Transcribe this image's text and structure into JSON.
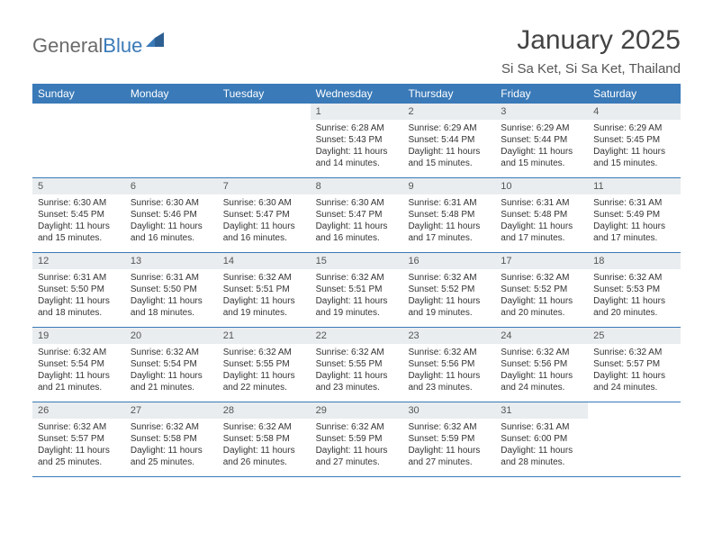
{
  "logo": {
    "word1": "General",
    "word2": "Blue"
  },
  "title": "January 2025",
  "location": "Si Sa Ket, Si Sa Ket, Thailand",
  "colors": {
    "header_bg": "#3a7ab8",
    "daynum_bg": "#e9edef",
    "rule": "#3a7ab8",
    "text": "#333333",
    "logo_gray": "#6b6b6b",
    "logo_blue": "#3a7ab8"
  },
  "dayNames": [
    "Sunday",
    "Monday",
    "Tuesday",
    "Wednesday",
    "Thursday",
    "Friday",
    "Saturday"
  ],
  "weeks": [
    [
      {
        "n": "",
        "lines": []
      },
      {
        "n": "",
        "lines": []
      },
      {
        "n": "",
        "lines": []
      },
      {
        "n": "1",
        "lines": [
          "Sunrise: 6:28 AM",
          "Sunset: 5:43 PM",
          "Daylight: 11 hours",
          "and 14 minutes."
        ]
      },
      {
        "n": "2",
        "lines": [
          "Sunrise: 6:29 AM",
          "Sunset: 5:44 PM",
          "Daylight: 11 hours",
          "and 15 minutes."
        ]
      },
      {
        "n": "3",
        "lines": [
          "Sunrise: 6:29 AM",
          "Sunset: 5:44 PM",
          "Daylight: 11 hours",
          "and 15 minutes."
        ]
      },
      {
        "n": "4",
        "lines": [
          "Sunrise: 6:29 AM",
          "Sunset: 5:45 PM",
          "Daylight: 11 hours",
          "and 15 minutes."
        ]
      }
    ],
    [
      {
        "n": "5",
        "lines": [
          "Sunrise: 6:30 AM",
          "Sunset: 5:45 PM",
          "Daylight: 11 hours",
          "and 15 minutes."
        ]
      },
      {
        "n": "6",
        "lines": [
          "Sunrise: 6:30 AM",
          "Sunset: 5:46 PM",
          "Daylight: 11 hours",
          "and 16 minutes."
        ]
      },
      {
        "n": "7",
        "lines": [
          "Sunrise: 6:30 AM",
          "Sunset: 5:47 PM",
          "Daylight: 11 hours",
          "and 16 minutes."
        ]
      },
      {
        "n": "8",
        "lines": [
          "Sunrise: 6:30 AM",
          "Sunset: 5:47 PM",
          "Daylight: 11 hours",
          "and 16 minutes."
        ]
      },
      {
        "n": "9",
        "lines": [
          "Sunrise: 6:31 AM",
          "Sunset: 5:48 PM",
          "Daylight: 11 hours",
          "and 17 minutes."
        ]
      },
      {
        "n": "10",
        "lines": [
          "Sunrise: 6:31 AM",
          "Sunset: 5:48 PM",
          "Daylight: 11 hours",
          "and 17 minutes."
        ]
      },
      {
        "n": "11",
        "lines": [
          "Sunrise: 6:31 AM",
          "Sunset: 5:49 PM",
          "Daylight: 11 hours",
          "and 17 minutes."
        ]
      }
    ],
    [
      {
        "n": "12",
        "lines": [
          "Sunrise: 6:31 AM",
          "Sunset: 5:50 PM",
          "Daylight: 11 hours",
          "and 18 minutes."
        ]
      },
      {
        "n": "13",
        "lines": [
          "Sunrise: 6:31 AM",
          "Sunset: 5:50 PM",
          "Daylight: 11 hours",
          "and 18 minutes."
        ]
      },
      {
        "n": "14",
        "lines": [
          "Sunrise: 6:32 AM",
          "Sunset: 5:51 PM",
          "Daylight: 11 hours",
          "and 19 minutes."
        ]
      },
      {
        "n": "15",
        "lines": [
          "Sunrise: 6:32 AM",
          "Sunset: 5:51 PM",
          "Daylight: 11 hours",
          "and 19 minutes."
        ]
      },
      {
        "n": "16",
        "lines": [
          "Sunrise: 6:32 AM",
          "Sunset: 5:52 PM",
          "Daylight: 11 hours",
          "and 19 minutes."
        ]
      },
      {
        "n": "17",
        "lines": [
          "Sunrise: 6:32 AM",
          "Sunset: 5:52 PM",
          "Daylight: 11 hours",
          "and 20 minutes."
        ]
      },
      {
        "n": "18",
        "lines": [
          "Sunrise: 6:32 AM",
          "Sunset: 5:53 PM",
          "Daylight: 11 hours",
          "and 20 minutes."
        ]
      }
    ],
    [
      {
        "n": "19",
        "lines": [
          "Sunrise: 6:32 AM",
          "Sunset: 5:54 PM",
          "Daylight: 11 hours",
          "and 21 minutes."
        ]
      },
      {
        "n": "20",
        "lines": [
          "Sunrise: 6:32 AM",
          "Sunset: 5:54 PM",
          "Daylight: 11 hours",
          "and 21 minutes."
        ]
      },
      {
        "n": "21",
        "lines": [
          "Sunrise: 6:32 AM",
          "Sunset: 5:55 PM",
          "Daylight: 11 hours",
          "and 22 minutes."
        ]
      },
      {
        "n": "22",
        "lines": [
          "Sunrise: 6:32 AM",
          "Sunset: 5:55 PM",
          "Daylight: 11 hours",
          "and 23 minutes."
        ]
      },
      {
        "n": "23",
        "lines": [
          "Sunrise: 6:32 AM",
          "Sunset: 5:56 PM",
          "Daylight: 11 hours",
          "and 23 minutes."
        ]
      },
      {
        "n": "24",
        "lines": [
          "Sunrise: 6:32 AM",
          "Sunset: 5:56 PM",
          "Daylight: 11 hours",
          "and 24 minutes."
        ]
      },
      {
        "n": "25",
        "lines": [
          "Sunrise: 6:32 AM",
          "Sunset: 5:57 PM",
          "Daylight: 11 hours",
          "and 24 minutes."
        ]
      }
    ],
    [
      {
        "n": "26",
        "lines": [
          "Sunrise: 6:32 AM",
          "Sunset: 5:57 PM",
          "Daylight: 11 hours",
          "and 25 minutes."
        ]
      },
      {
        "n": "27",
        "lines": [
          "Sunrise: 6:32 AM",
          "Sunset: 5:58 PM",
          "Daylight: 11 hours",
          "and 25 minutes."
        ]
      },
      {
        "n": "28",
        "lines": [
          "Sunrise: 6:32 AM",
          "Sunset: 5:58 PM",
          "Daylight: 11 hours",
          "and 26 minutes."
        ]
      },
      {
        "n": "29",
        "lines": [
          "Sunrise: 6:32 AM",
          "Sunset: 5:59 PM",
          "Daylight: 11 hours",
          "and 27 minutes."
        ]
      },
      {
        "n": "30",
        "lines": [
          "Sunrise: 6:32 AM",
          "Sunset: 5:59 PM",
          "Daylight: 11 hours",
          "and 27 minutes."
        ]
      },
      {
        "n": "31",
        "lines": [
          "Sunrise: 6:31 AM",
          "Sunset: 6:00 PM",
          "Daylight: 11 hours",
          "and 28 minutes."
        ]
      },
      {
        "n": "",
        "lines": []
      }
    ]
  ]
}
